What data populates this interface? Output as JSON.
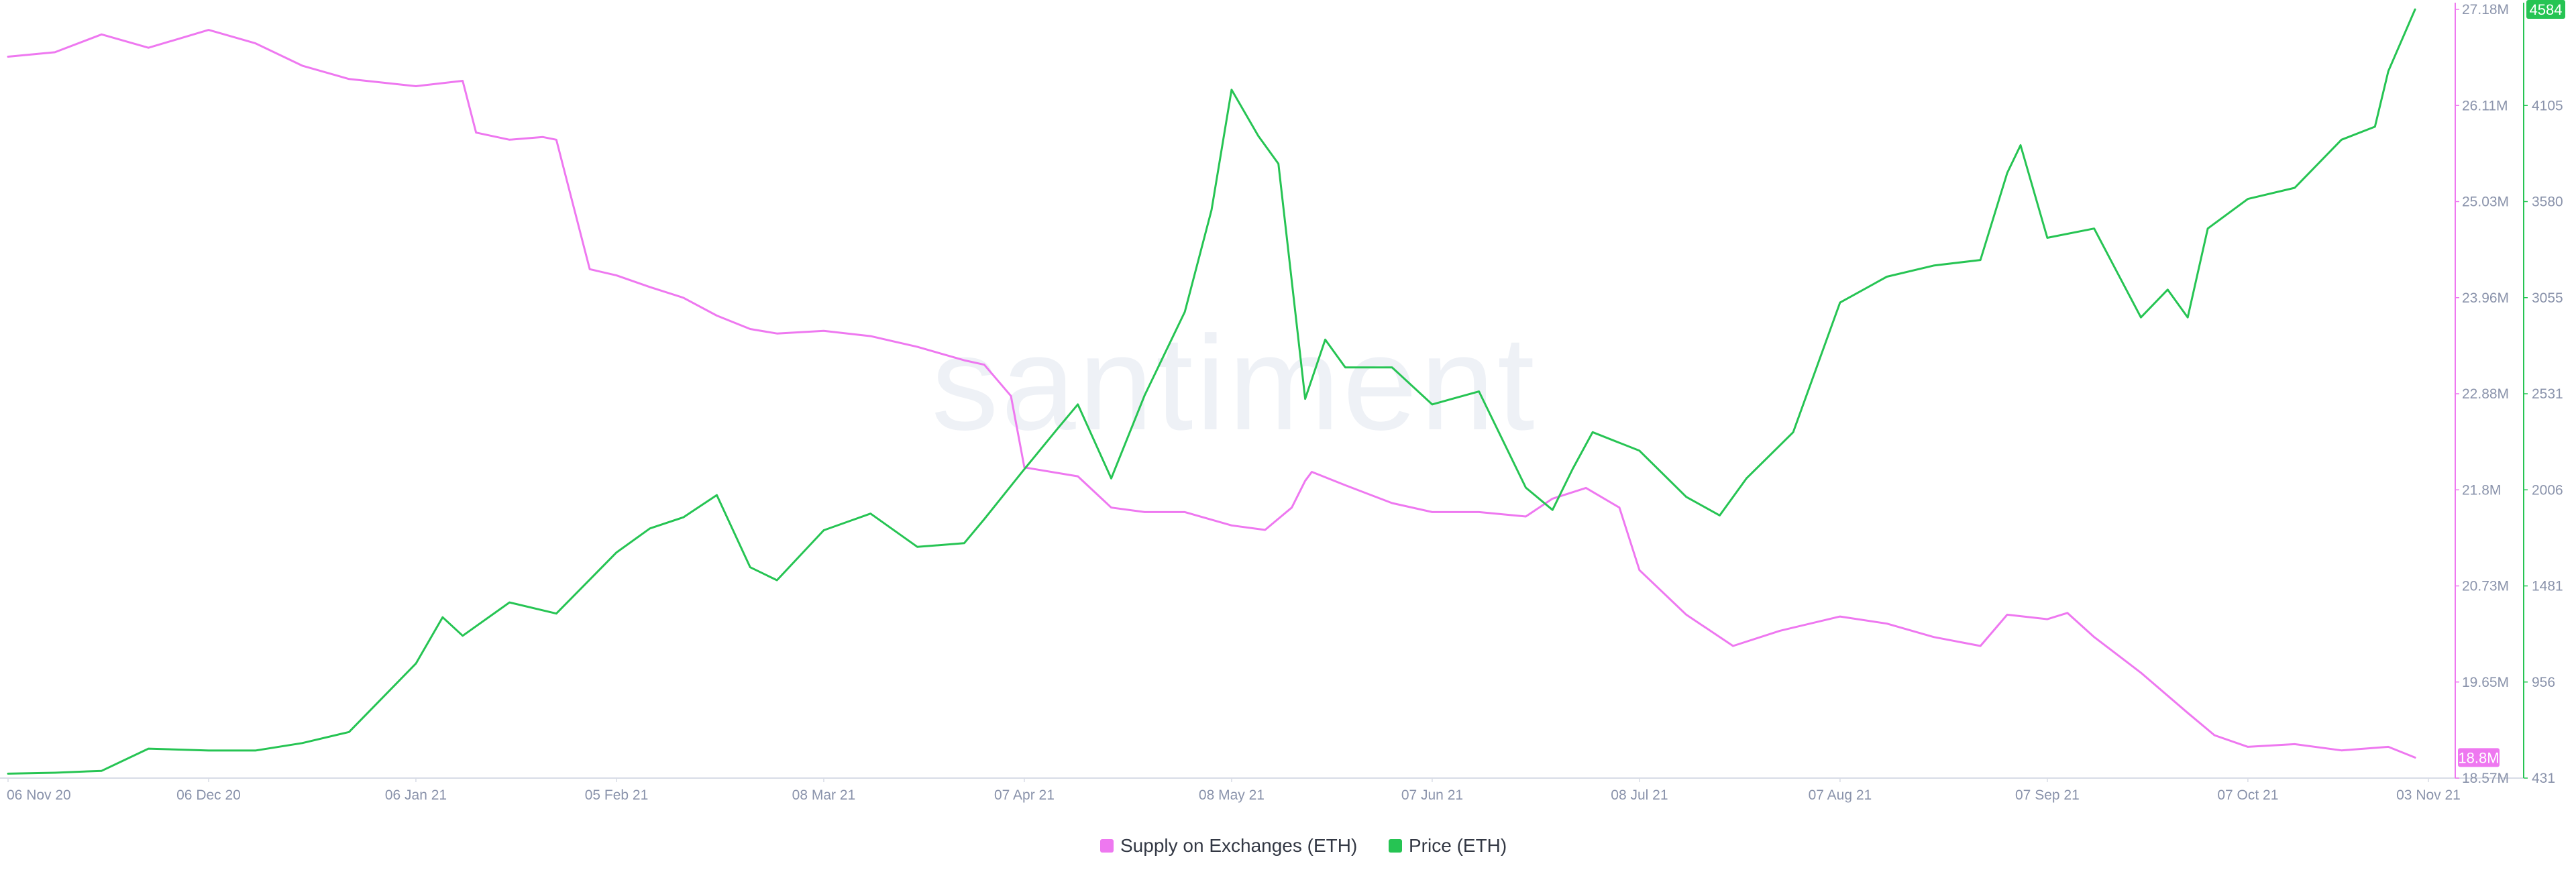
{
  "watermark": "santiment",
  "legend": [
    {
      "label": "Supply on Exchanges (ETH)",
      "color": "#ee78f0"
    },
    {
      "label": "Price (ETH)",
      "color": "#26c453"
    }
  ],
  "colors": {
    "supply": "#ee78f0",
    "price": "#26c453",
    "axis_text": "#8a93ab",
    "axis_line": "#d8dce6"
  },
  "chart_data": {
    "type": "line",
    "title": "",
    "x_tick_labels": [
      "06 Nov 20",
      "06 Dec 20",
      "06 Jan 21",
      "05 Feb 21",
      "08 Mar 21",
      "07 Apr 21",
      "08 May 21",
      "07 Jun 21",
      "08 Jul 21",
      "07 Aug 21",
      "07 Sep 21",
      "07 Oct 21",
      "03 Nov 21"
    ],
    "y_left_ticks": [
      "27.18M",
      "26.11M",
      "25.03M",
      "23.96M",
      "22.88M",
      "21.8M",
      "20.73M",
      "19.65M",
      "18.57M"
    ],
    "y_left_range": [
      18.57,
      27.18
    ],
    "y_left_unit": "M",
    "y_right_ticks": [
      "4584",
      "4105",
      "3580",
      "3055",
      "2531",
      "2006",
      "1481",
      "956",
      "431"
    ],
    "y_right_range": [
      431,
      4584
    ],
    "series": [
      {
        "name": "Supply on Exchanges (ETH)",
        "axis": "left",
        "last_value_label": "18.8M",
        "x": [
          "06 Nov 20",
          "13 Nov 20",
          "20 Nov 20",
          "27 Nov 20",
          "06 Dec 20",
          "13 Dec 20",
          "20 Dec 20",
          "27 Dec 20",
          "06 Jan 21",
          "13 Jan 21",
          "15 Jan 21",
          "20 Jan 21",
          "25 Jan 21",
          "27 Jan 21",
          "01 Feb 21",
          "05 Feb 21",
          "10 Feb 21",
          "15 Feb 21",
          "20 Feb 21",
          "25 Feb 21",
          "01 Mar 21",
          "08 Mar 21",
          "15 Mar 21",
          "22 Mar 21",
          "29 Mar 21",
          "01 Apr 21",
          "05 Apr 21",
          "07 Apr 21",
          "15 Apr 21",
          "20 Apr 21",
          "25 Apr 21",
          "01 May 21",
          "08 May 21",
          "13 May 21",
          "17 May 21",
          "19 May 21",
          "20 May 21",
          "25 May 21",
          "01 Jun 21",
          "07 Jun 21",
          "14 Jun 21",
          "21 Jun 21",
          "25 Jun 21",
          "30 Jun 21",
          "05 Jul 21",
          "08 Jul 21",
          "15 Jul 21",
          "22 Jul 21",
          "29 Jul 21",
          "07 Aug 21",
          "14 Aug 21",
          "21 Aug 21",
          "28 Aug 21",
          "01 Sep 21",
          "07 Sep 21",
          "10 Sep 21",
          "14 Sep 21",
          "21 Sep 21",
          "28 Sep 21",
          "02 Oct 21",
          "07 Oct 21",
          "14 Oct 21",
          "21 Oct 21",
          "28 Oct 21",
          "01 Nov 21"
        ],
        "values": [
          26.65,
          26.7,
          26.9,
          26.75,
          26.95,
          26.8,
          26.55,
          26.4,
          26.32,
          26.38,
          25.8,
          25.72,
          25.75,
          25.72,
          24.27,
          24.2,
          24.07,
          23.95,
          23.75,
          23.6,
          23.55,
          23.58,
          23.52,
          23.4,
          23.25,
          23.2,
          22.85,
          22.05,
          21.95,
          21.6,
          21.55,
          21.55,
          21.4,
          21.35,
          21.6,
          21.9,
          22.0,
          21.85,
          21.65,
          21.55,
          21.55,
          21.5,
          21.7,
          21.82,
          21.6,
          20.9,
          20.4,
          20.05,
          20.22,
          20.38,
          20.3,
          20.15,
          20.05,
          20.4,
          20.35,
          20.42,
          20.15,
          19.75,
          19.3,
          19.05,
          18.92,
          18.95,
          18.88,
          18.92,
          18.8
        ]
      },
      {
        "name": "Price (ETH)",
        "axis": "right",
        "last_value_label": "4584",
        "x": [
          "06 Nov 20",
          "13 Nov 20",
          "20 Nov 20",
          "27 Nov 20",
          "06 Dec 20",
          "13 Dec 20",
          "20 Dec 20",
          "27 Dec 20",
          "06 Jan 21",
          "10 Jan 21",
          "13 Jan 21",
          "20 Jan 21",
          "27 Jan 21",
          "05 Feb 21",
          "10 Feb 21",
          "15 Feb 21",
          "20 Feb 21",
          "25 Feb 21",
          "01 Mar 21",
          "08 Mar 21",
          "15 Mar 21",
          "22 Mar 21",
          "29 Mar 21",
          "01 Apr 21",
          "07 Apr 21",
          "12 Apr 21",
          "15 Apr 21",
          "20 Apr 21",
          "25 Apr 21",
          "01 May 21",
          "05 May 21",
          "08 May 21",
          "12 May 21",
          "15 May 21",
          "19 May 21",
          "22 May 21",
          "25 May 21",
          "01 Jun 21",
          "07 Jun 21",
          "14 Jun 21",
          "21 Jun 21",
          "25 Jun 21",
          "28 Jun 21",
          "01 Jul 21",
          "08 Jul 21",
          "15 Jul 21",
          "20 Jul 21",
          "24 Jul 21",
          "31 Jul 21",
          "07 Aug 21",
          "14 Aug 21",
          "21 Aug 21",
          "28 Aug 21",
          "01 Sep 21",
          "03 Sep 21",
          "07 Sep 21",
          "14 Sep 21",
          "21 Sep 21",
          "25 Sep 21",
          "28 Sep 21",
          "01 Oct 21",
          "07 Oct 21",
          "14 Oct 21",
          "21 Oct 21",
          "26 Oct 21",
          "28 Oct 21",
          "01 Nov 21"
        ],
        "values": [
          455,
          460,
          470,
          590,
          580,
          580,
          620,
          680,
          1050,
          1300,
          1200,
          1380,
          1320,
          1650,
          1780,
          1840,
          1960,
          1570,
          1500,
          1770,
          1860,
          1680,
          1700,
          1830,
          2100,
          2320,
          2450,
          2050,
          2500,
          2950,
          3500,
          4150,
          3900,
          3750,
          2480,
          2800,
          2650,
          2650,
          2450,
          2520,
          2000,
          1880,
          2100,
          2300,
          2200,
          1950,
          1850,
          2050,
          2300,
          3000,
          3140,
          3200,
          3230,
          3700,
          3850,
          3350,
          3400,
          2920,
          3070,
          2920,
          3400,
          3560,
          3620,
          3880,
          3950,
          4250,
          4584
        ]
      }
    ]
  }
}
